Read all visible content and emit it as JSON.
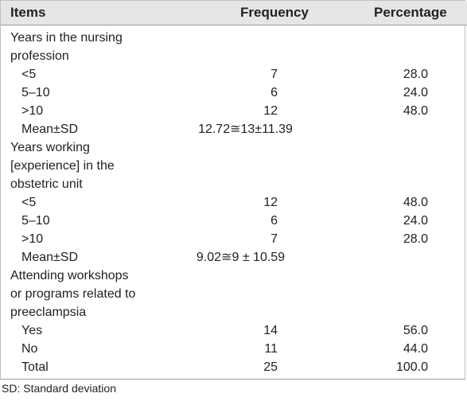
{
  "header": {
    "items": "Items",
    "frequency": "Frequency",
    "percentage": "Percentage"
  },
  "rows": [
    {
      "item": "Years in the nursing",
      "freq": "",
      "pct": ""
    },
    {
      "item": "profession",
      "freq": "",
      "pct": ""
    },
    {
      "item": "<5",
      "freq": "7",
      "pct": "28.0"
    },
    {
      "item": "5–10",
      "freq": "6",
      "pct": "24.0"
    },
    {
      "item": ">10",
      "freq": "12",
      "pct": "48.0"
    },
    {
      "item": "Mean±SD",
      "mean": "12.72≅13±11.39"
    },
    {
      "item": "Years working",
      "freq": "",
      "pct": ""
    },
    {
      "item": "[experience] in the",
      "freq": "",
      "pct": ""
    },
    {
      "item": "obstetric unit",
      "freq": "",
      "pct": ""
    },
    {
      "item": "<5",
      "freq": "12",
      "pct": "48.0"
    },
    {
      "item": "5–10",
      "freq": "6",
      "pct": "24.0"
    },
    {
      "item": ">10",
      "freq": "7",
      "pct": "28.0"
    },
    {
      "item": "Mean±SD",
      "mean": "9.02≅9 ± 10.59"
    },
    {
      "item": "Attending workshops",
      "freq": "",
      "pct": ""
    },
    {
      "item": "or programs related to",
      "freq": "",
      "pct": ""
    },
    {
      "item": "preeclampsia",
      "freq": "",
      "pct": ""
    },
    {
      "item": "Yes",
      "freq": "14",
      "pct": "56.0"
    },
    {
      "item": "No",
      "freq": "11",
      "pct": "44.0"
    },
    {
      "item": "Total",
      "freq": "25",
      "pct": "100.0"
    }
  ],
  "footnote": "SD: Standard deviation"
}
